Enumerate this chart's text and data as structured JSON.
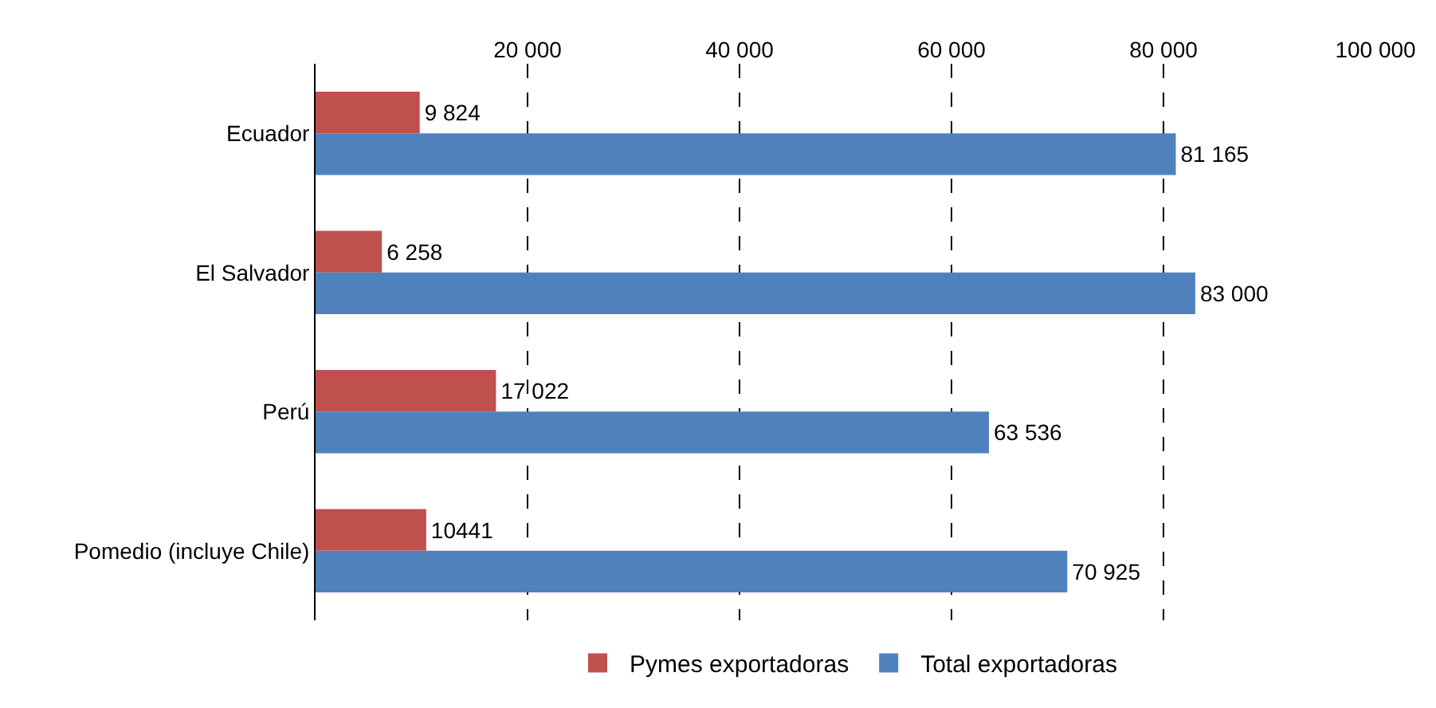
{
  "chart_data": {
    "type": "bar",
    "orientation": "horizontal",
    "categories": [
      "Ecuador",
      "El Salvador",
      "Perú",
      "Pomedio (incluye Chile)"
    ],
    "series": [
      {
        "name": "Pymes exportadoras",
        "color": "#c0504d",
        "values": [
          9824,
          6258,
          17022,
          10441
        ],
        "value_labels": [
          "9 824",
          "6 258",
          "17 022",
          "10441"
        ]
      },
      {
        "name": "Total exportadoras",
        "color": "#4f81bd",
        "values": [
          81165,
          83000,
          63536,
          70925
        ],
        "value_labels": [
          "81 165",
          "83 000",
          "63 536",
          "70 925"
        ]
      }
    ],
    "xlim": [
      0,
      100000
    ],
    "xticks": [
      {
        "value": 20000,
        "label": "20 000"
      },
      {
        "value": 40000,
        "label": "40 000"
      },
      {
        "value": 60000,
        "label": "60 000"
      },
      {
        "value": 80000,
        "label": "80 000"
      },
      {
        "value": 100000,
        "label": "100 000"
      }
    ],
    "grid": "x",
    "legend": "bottom"
  }
}
